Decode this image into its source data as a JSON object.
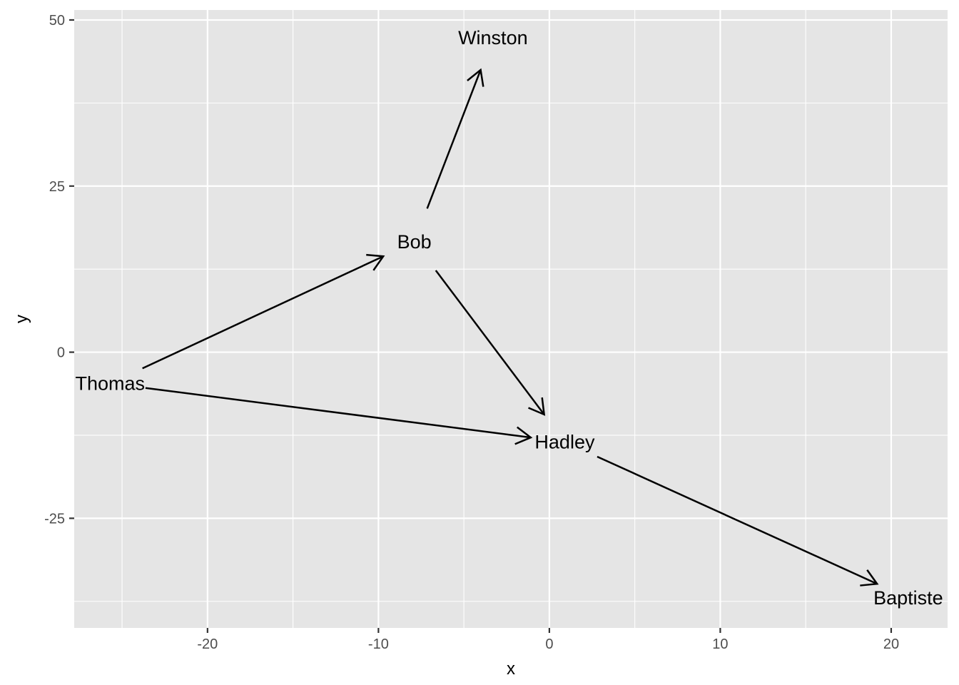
{
  "chart_data": {
    "type": "scatter",
    "title": "",
    "xlabel": "x",
    "ylabel": "y",
    "xlim": [
      -27.8,
      23.3
    ],
    "ylim": [
      -41.5,
      51.5
    ],
    "x_ticks": [
      -20,
      -10,
      0,
      10,
      20
    ],
    "x_tick_labels": [
      "-20",
      "-10",
      "0",
      "10",
      "20"
    ],
    "y_ticks": [
      -25,
      0,
      25,
      50
    ],
    "y_tick_labels": [
      "-25",
      "0",
      "25",
      "50"
    ],
    "grid": true,
    "legend": "none",
    "panel_background": "#e5e5e5",
    "grid_color": "#ffffff",
    "nodes": [
      {
        "name": "Winston",
        "x": -3.3,
        "y": 47.3
      },
      {
        "name": "Bob",
        "x": -7.9,
        "y": 16.6
      },
      {
        "name": "Thomas",
        "x": -25.7,
        "y": -4.7
      },
      {
        "name": "Hadley",
        "x": 0.9,
        "y": -13.5
      },
      {
        "name": "Baptiste",
        "x": 21.0,
        "y": -37.0
      }
    ],
    "edges": [
      {
        "from": "Thomas",
        "to": "Bob"
      },
      {
        "from": "Thomas",
        "to": "Hadley"
      },
      {
        "from": "Bob",
        "to": "Winston"
      },
      {
        "from": "Bob",
        "to": "Hadley"
      },
      {
        "from": "Hadley",
        "to": "Baptiste"
      }
    ]
  }
}
